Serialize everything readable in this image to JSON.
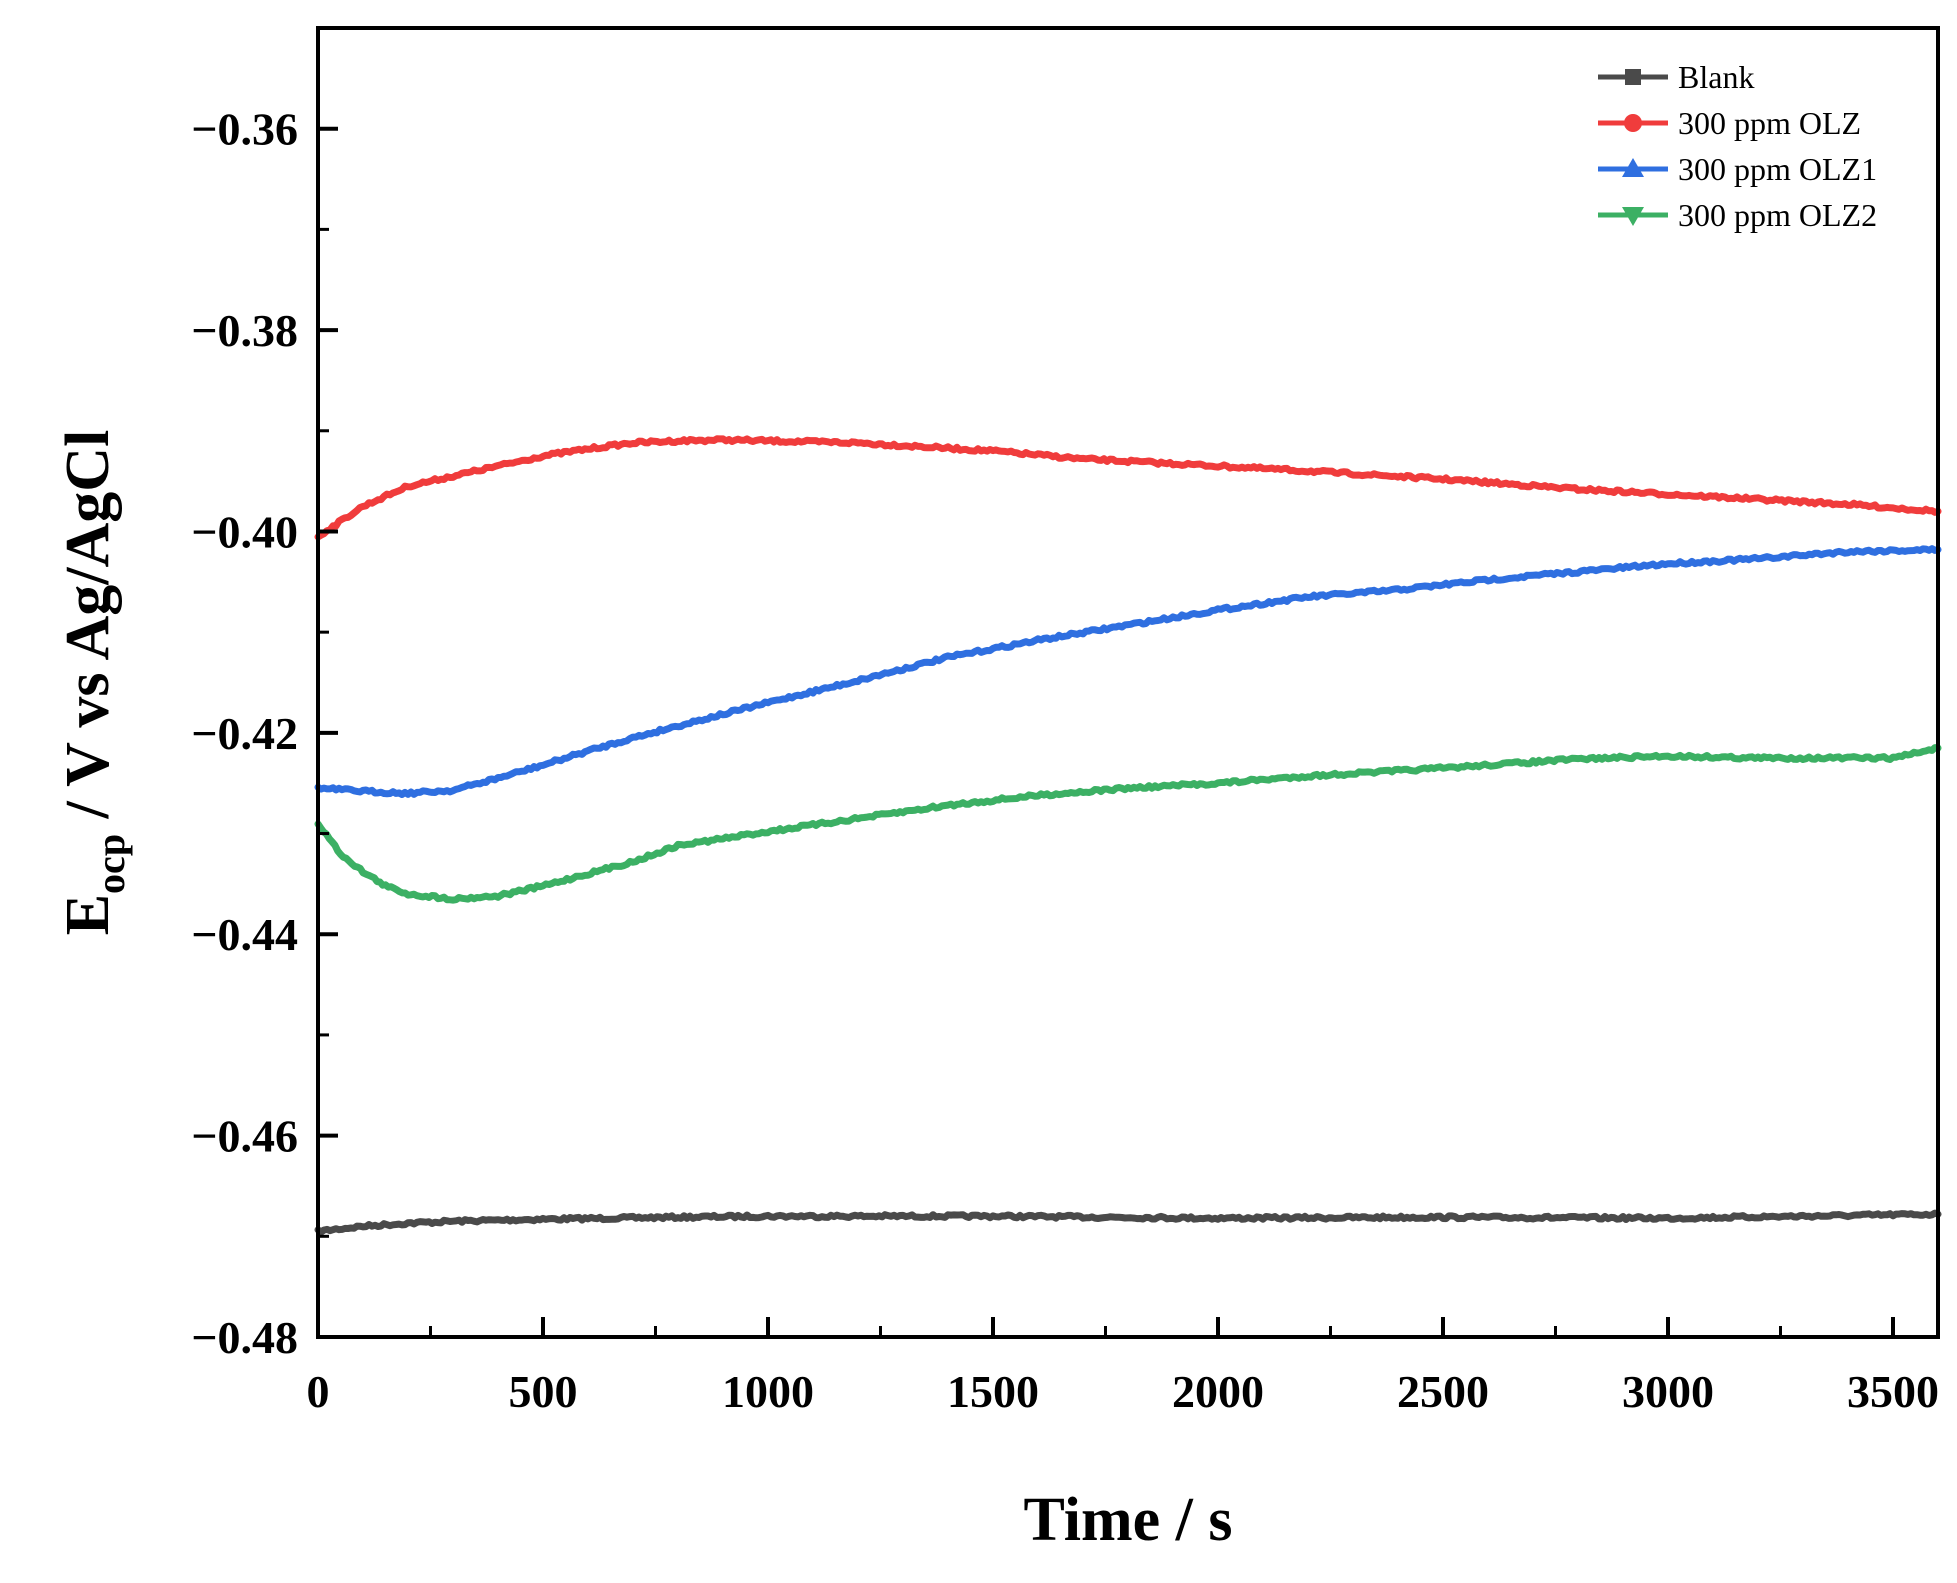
{
  "chart_data": {
    "type": "line",
    "title": "",
    "xlabel": "Time / s",
    "ylabel": {
      "main": "E",
      "sub": "ocp",
      "rest": " / V vs Ag/AgCl"
    },
    "xlim": [
      0,
      3600
    ],
    "ylim": [
      -0.48,
      -0.35
    ],
    "x_ticks": [
      0,
      500,
      1000,
      1500,
      2000,
      2500,
      3000,
      3500
    ],
    "x_tick_labels": [
      "0",
      "500",
      "1000",
      "1500",
      "2000",
      "2500",
      "3000",
      "3500"
    ],
    "y_ticks": [
      -0.48,
      -0.46,
      -0.44,
      -0.42,
      -0.4,
      -0.38,
      -0.36
    ],
    "y_tick_labels": [
      "−0.48",
      "−0.46",
      "−0.44",
      "−0.42",
      "−0.40",
      "−0.38",
      "−0.36"
    ],
    "grid": false,
    "legend_position": "top-right",
    "series": [
      {
        "name": "Blank",
        "color": "#4a4a4a",
        "marker": "square",
        "x": [
          0,
          100,
          200,
          300,
          500,
          800,
          1000,
          1500,
          2000,
          2500,
          3000,
          3300,
          3600
        ],
        "y": [
          -0.4695,
          -0.469,
          -0.4687,
          -0.4685,
          -0.4683,
          -0.4681,
          -0.468,
          -0.468,
          -0.4682,
          -0.4681,
          -0.4682,
          -0.468,
          -0.4678
        ]
      },
      {
        "name": "300 ppm OLZ",
        "color": "#f03c3c",
        "marker": "circle",
        "x": [
          0,
          100,
          200,
          300,
          400,
          500,
          600,
          700,
          800,
          900,
          1000,
          1200,
          1500,
          1700,
          2000,
          2200,
          2500,
          2800,
          3000,
          3200,
          3400,
          3600
        ],
        "y": [
          -0.4005,
          -0.3975,
          -0.3955,
          -0.3945,
          -0.3935,
          -0.3925,
          -0.3918,
          -0.3912,
          -0.391,
          -0.3909,
          -0.391,
          -0.3912,
          -0.392,
          -0.3928,
          -0.3935,
          -0.394,
          -0.3948,
          -0.3958,
          -0.3963,
          -0.3968,
          -0.3973,
          -0.398
        ]
      },
      {
        "name": "300 ppm OLZ1",
        "color": "#2f6fe0",
        "marker": "triangle-up",
        "x": [
          0,
          100,
          200,
          300,
          400,
          500,
          600,
          700,
          800,
          1000,
          1200,
          1400,
          1600,
          1800,
          2000,
          2200,
          2400,
          2600,
          2800,
          3000,
          3200,
          3400,
          3600
        ],
        "y": [
          -0.4255,
          -0.4258,
          -0.426,
          -0.4257,
          -0.4245,
          -0.4232,
          -0.4218,
          -0.4205,
          -0.4193,
          -0.417,
          -0.4148,
          -0.4125,
          -0.4108,
          -0.4093,
          -0.4078,
          -0.4065,
          -0.4058,
          -0.4048,
          -0.404,
          -0.4032,
          -0.4027,
          -0.402,
          -0.4018
        ]
      },
      {
        "name": "300 ppm OLZ2",
        "color": "#3cb064",
        "marker": "triangle-down",
        "x": [
          0,
          50,
          100,
          150,
          200,
          300,
          400,
          500,
          600,
          700,
          800,
          1000,
          1200,
          1400,
          1600,
          1800,
          2000,
          2200,
          2500,
          2800,
          3000,
          3200,
          3400,
          3500,
          3600
        ],
        "y": [
          -0.429,
          -0.432,
          -0.4338,
          -0.4352,
          -0.436,
          -0.4365,
          -0.4362,
          -0.4352,
          -0.434,
          -0.4328,
          -0.4312,
          -0.4298,
          -0.4285,
          -0.4272,
          -0.4262,
          -0.4255,
          -0.425,
          -0.4243,
          -0.4235,
          -0.4226,
          -0.4223,
          -0.4225,
          -0.4225,
          -0.4225,
          -0.4215
        ]
      }
    ]
  }
}
